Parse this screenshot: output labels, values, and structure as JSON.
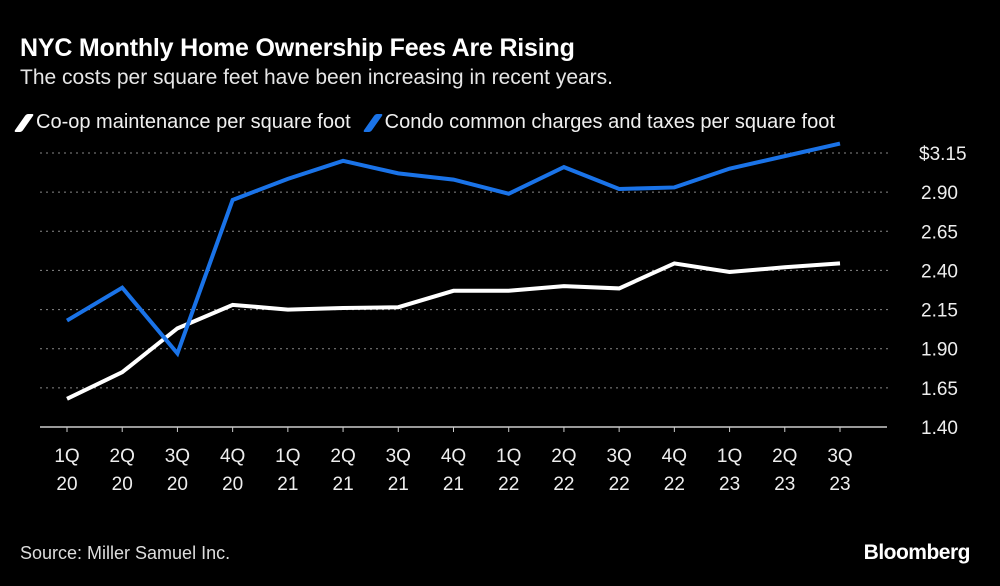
{
  "title": "NYC Monthly Home Ownership Fees Are Rising",
  "subtitle": "The costs per square feet have been increasing in recent years.",
  "source": "Source: Miller Samuel Inc.",
  "brand": "Bloomberg",
  "chart_data": {
    "type": "line",
    "title": "NYC Monthly Home Ownership Fees Are Rising",
    "subtitle": "The costs per square feet have been increasing in recent years.",
    "categories": [
      [
        "1Q",
        "20"
      ],
      [
        "2Q",
        "20"
      ],
      [
        "3Q",
        "20"
      ],
      [
        "4Q",
        "20"
      ],
      [
        "1Q",
        "21"
      ],
      [
        "2Q",
        "21"
      ],
      [
        "3Q",
        "21"
      ],
      [
        "4Q",
        "21"
      ],
      [
        "1Q",
        "22"
      ],
      [
        "2Q",
        "22"
      ],
      [
        "3Q",
        "22"
      ],
      [
        "4Q",
        "22"
      ],
      [
        "1Q",
        "23"
      ],
      [
        "2Q",
        "23"
      ],
      [
        "3Q",
        "23"
      ]
    ],
    "yticks": [
      1.4,
      1.65,
      1.9,
      2.15,
      2.4,
      2.65,
      2.9,
      3.15
    ],
    "ytick_labels": [
      "1.40",
      "1.65",
      "1.90",
      "2.15",
      "2.40",
      "2.65",
      "2.90",
      "$3.15"
    ],
    "ylim": [
      1.4,
      3.15
    ],
    "grid": true,
    "legend": "top",
    "y_axis_side": "right",
    "series": [
      {
        "name": "Co-op maintenance per square foot",
        "color": "#ffffff",
        "values": [
          1.58,
          1.75,
          2.03,
          2.18,
          2.15,
          2.16,
          2.165,
          2.27,
          2.27,
          2.3,
          2.285,
          2.445,
          2.39,
          2.42,
          2.445
        ]
      },
      {
        "name": "Condo common charges and taxes per square foot",
        "color": "#1a73e8",
        "values": [
          2.08,
          2.29,
          1.87,
          2.85,
          2.985,
          3.1,
          3.02,
          2.98,
          2.89,
          3.06,
          2.92,
          2.93,
          3.05,
          3.13,
          3.21
        ]
      }
    ]
  }
}
